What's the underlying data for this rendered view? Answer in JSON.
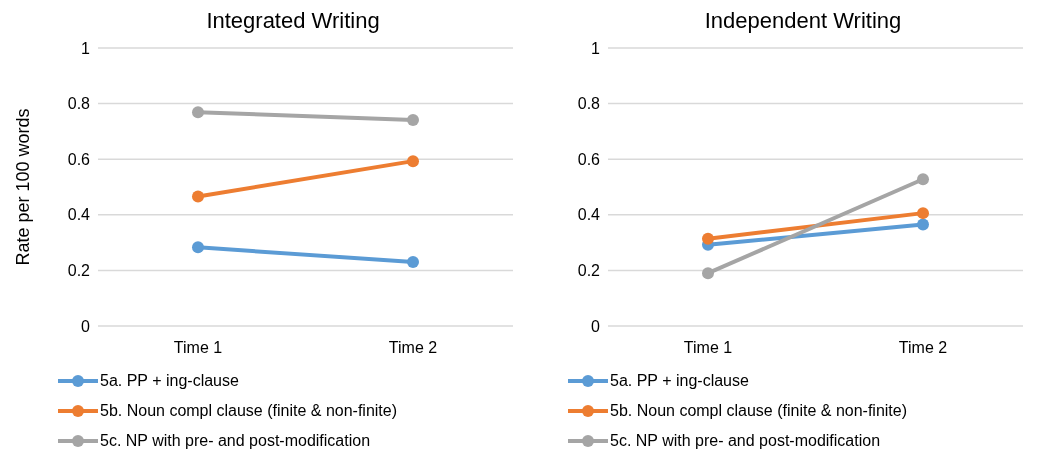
{
  "chart_data": [
    {
      "type": "line",
      "title": "Integrated Writing",
      "ylabel": "Rate per 100 words",
      "categories": [
        "Time 1",
        "Time 2"
      ],
      "series": [
        {
          "name": "5a. PP + ing-clause",
          "color": "#5b9bd5",
          "values": [
            0.283,
            0.23
          ]
        },
        {
          "name": "5b. Noun compl clause (finite & non-finite)",
          "color": "#ed7d31",
          "values": [
            0.466,
            0.593
          ]
        },
        {
          "name": "5c. NP with pre- and post-modification",
          "color": "#a5a5a5",
          "values": [
            0.769,
            0.741
          ]
        }
      ],
      "ylim": [
        0,
        1
      ],
      "yticks": [
        0,
        0.2,
        0.4,
        0.6,
        0.8,
        1
      ],
      "grid": "y",
      "legend": "bottom",
      "marker": "circle"
    },
    {
      "type": "line",
      "title": "Independent Writing",
      "categories": [
        "Time 1",
        "Time 2"
      ],
      "series": [
        {
          "name": "5a. PP + ing-clause",
          "color": "#5b9bd5",
          "values": [
            0.292,
            0.365
          ]
        },
        {
          "name": "5b. Noun compl clause (finite & non-finite)",
          "color": "#ed7d31",
          "values": [
            0.314,
            0.406
          ]
        },
        {
          "name": "5c. NP with pre- and post-modification",
          "color": "#a5a5a5",
          "values": [
            0.19,
            0.528
          ]
        }
      ],
      "ylim": [
        0,
        1
      ],
      "yticks": [
        0,
        0.2,
        0.4,
        0.6,
        0.8,
        1
      ],
      "grid": "y",
      "legend": "bottom",
      "marker": "circle"
    }
  ]
}
